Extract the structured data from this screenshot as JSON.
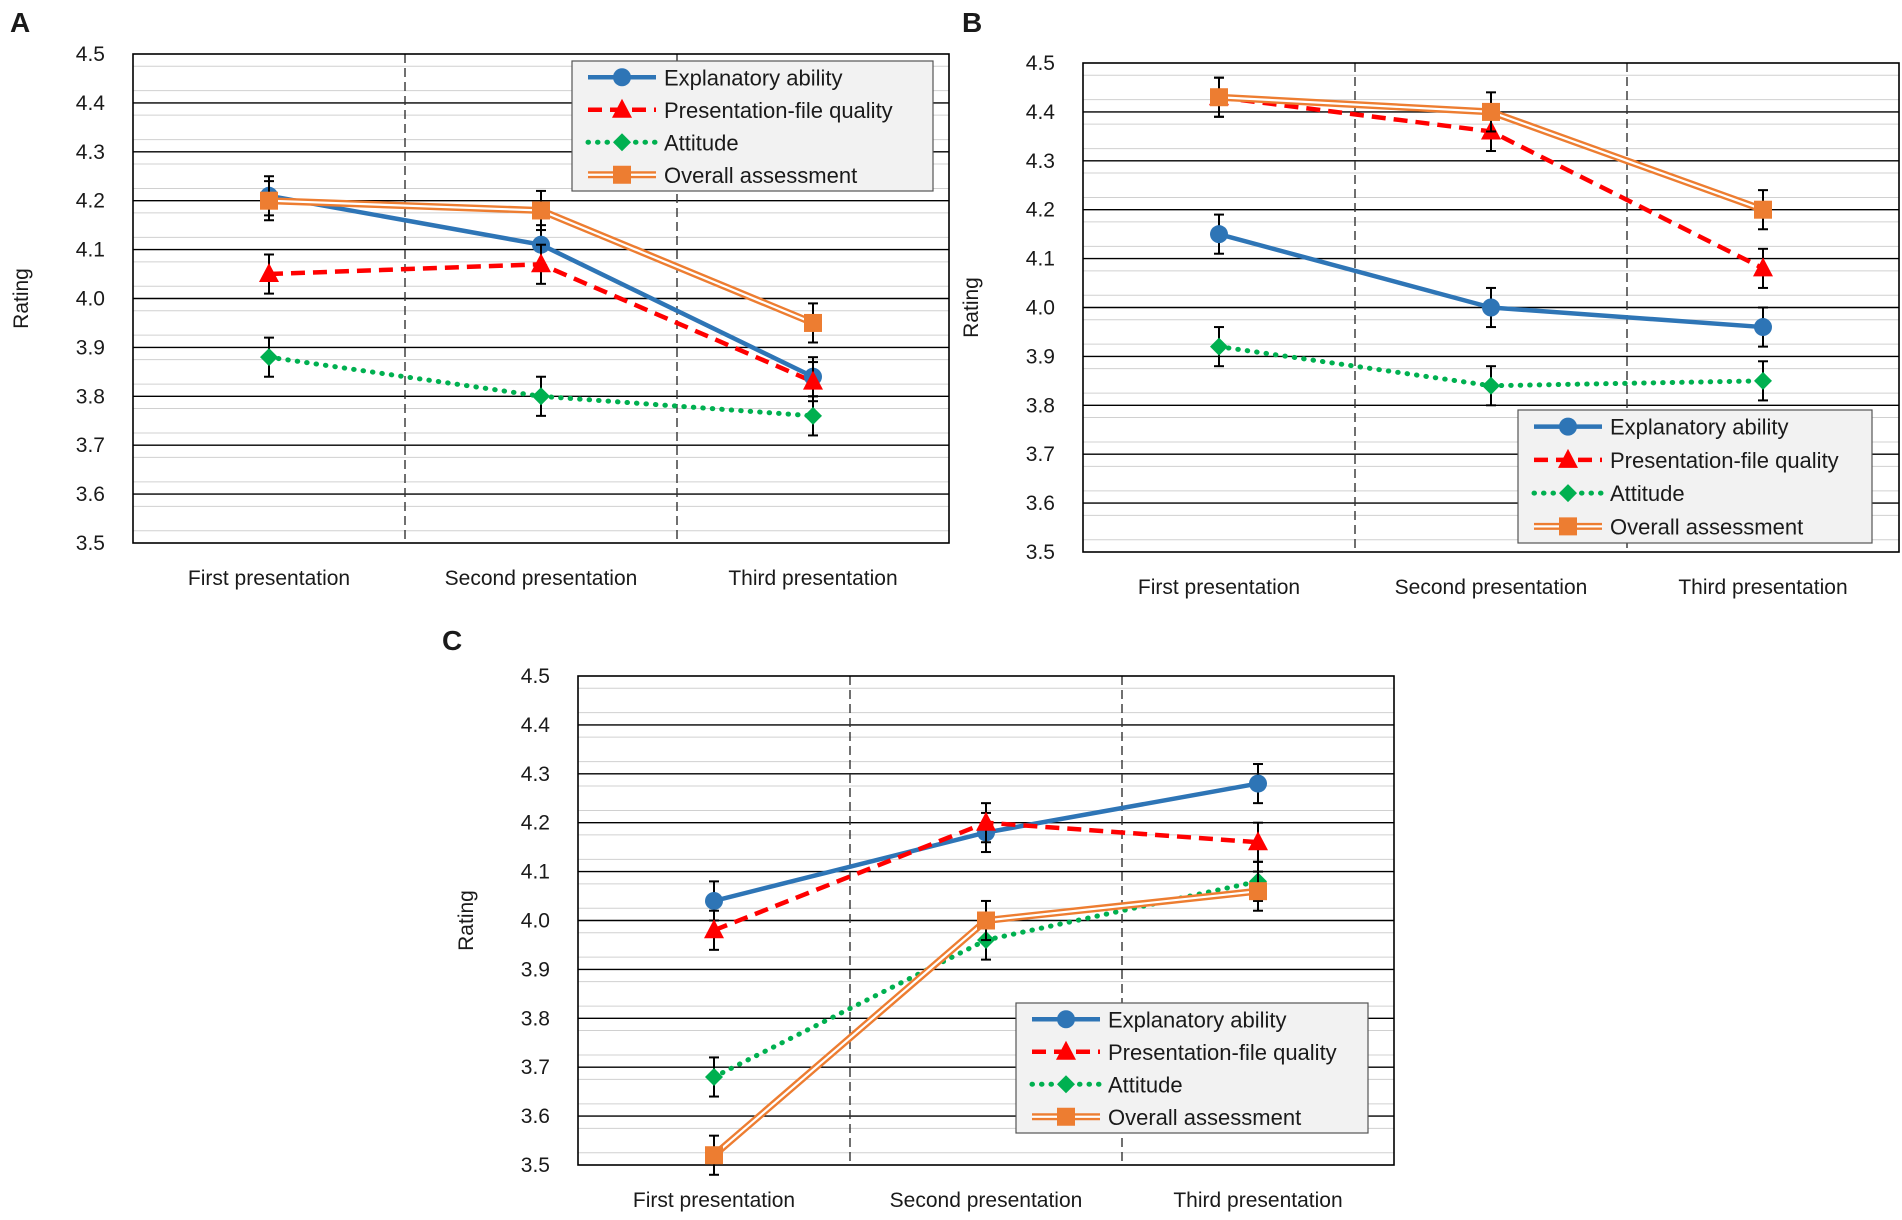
{
  "figure": {
    "legend_entries": {
      "explanatory": "Explanatory ability",
      "file_quality": "Presentation-file quality",
      "attitude": "Attitude",
      "overall": "Overall assessment"
    }
  },
  "chart_data": [
    {
      "panel": "A",
      "type": "line",
      "ylabel": "Rating",
      "xlabel": "",
      "ylim": [
        3.5,
        4.5
      ],
      "yticks": [
        "3.5",
        "3.6",
        "3.7",
        "3.8",
        "3.9",
        "4.0",
        "4.1",
        "4.2",
        "4.3",
        "4.4",
        "4.5"
      ],
      "grid": "major and minor horizontal",
      "legend_position": "top-right",
      "categories": [
        "First presentation",
        "Second presentation",
        "Third presentation"
      ],
      "series": [
        {
          "key": "explanatory",
          "name": "Explanatory ability",
          "values": [
            4.21,
            4.11,
            3.84
          ],
          "errors": [
            0.04,
            0.04,
            0.04
          ],
          "color": "#2e75b6",
          "style": "solid",
          "marker": "circle"
        },
        {
          "key": "file_quality",
          "name": "Presentation-file quality",
          "values": [
            4.05,
            4.07,
            3.83
          ],
          "errors": [
            0.04,
            0.04,
            0.04
          ],
          "color": "#ff0000",
          "style": "dashed",
          "marker": "triangle"
        },
        {
          "key": "attitude",
          "name": "Attitude",
          "values": [
            3.88,
            3.8,
            3.76
          ],
          "errors": [
            0.04,
            0.04,
            0.04
          ],
          "color": "#00b050",
          "style": "dotted",
          "marker": "diamond"
        },
        {
          "key": "overall",
          "name": "Overall assessment",
          "values": [
            4.2,
            4.18,
            3.95
          ],
          "errors": [
            0.04,
            0.04,
            0.04
          ],
          "color": "#ed7d31",
          "style": "double",
          "marker": "square"
        }
      ]
    },
    {
      "panel": "B",
      "type": "line",
      "ylabel": "Rating",
      "xlabel": "",
      "ylim": [
        3.5,
        4.5
      ],
      "yticks": [
        "3.5",
        "3.6",
        "3.7",
        "3.8",
        "3.9",
        "4.0",
        "4.1",
        "4.2",
        "4.3",
        "4.4",
        "4.5"
      ],
      "grid": "major and minor horizontal",
      "legend_position": "bottom-right",
      "categories": [
        "First presentation",
        "Second presentation",
        "Third presentation"
      ],
      "series": [
        {
          "key": "explanatory",
          "name": "Explanatory ability",
          "values": [
            4.15,
            4.0,
            3.96
          ],
          "errors": [
            0.04,
            0.04,
            0.04
          ],
          "color": "#2e75b6",
          "style": "solid",
          "marker": "circle"
        },
        {
          "key": "file_quality",
          "name": "Presentation-file quality",
          "values": [
            4.43,
            4.36,
            4.08
          ],
          "errors": [
            0.04,
            0.04,
            0.04
          ],
          "color": "#ff0000",
          "style": "dashed",
          "marker": "triangle"
        },
        {
          "key": "attitude",
          "name": "Attitude",
          "values": [
            3.92,
            3.84,
            3.85
          ],
          "errors": [
            0.04,
            0.04,
            0.04
          ],
          "color": "#00b050",
          "style": "dotted",
          "marker": "diamond"
        },
        {
          "key": "overall",
          "name": "Overall assessment",
          "values": [
            4.43,
            4.4,
            4.2
          ],
          "errors": [
            0.04,
            0.04,
            0.04
          ],
          "color": "#ed7d31",
          "style": "double",
          "marker": "square"
        }
      ]
    },
    {
      "panel": "C",
      "type": "line",
      "ylabel": "Rating",
      "xlabel": "",
      "ylim": [
        3.5,
        4.5
      ],
      "yticks": [
        "3.5",
        "3.6",
        "3.7",
        "3.8",
        "3.9",
        "4.0",
        "4.1",
        "4.2",
        "4.3",
        "4.4",
        "4.5"
      ],
      "grid": "major and minor horizontal",
      "legend_position": "bottom-right",
      "categories": [
        "First presentation",
        "Second presentation",
        "Third presentation"
      ],
      "series": [
        {
          "key": "explanatory",
          "name": "Explanatory ability",
          "values": [
            4.04,
            4.18,
            4.28
          ],
          "errors": [
            0.04,
            0.04,
            0.04
          ],
          "color": "#2e75b6",
          "style": "solid",
          "marker": "circle"
        },
        {
          "key": "file_quality",
          "name": "Presentation-file quality",
          "values": [
            3.98,
            4.2,
            4.16
          ],
          "errors": [
            0.04,
            0.04,
            0.04
          ],
          "color": "#ff0000",
          "style": "dashed",
          "marker": "triangle"
        },
        {
          "key": "attitude",
          "name": "Attitude",
          "values": [
            3.68,
            3.96,
            4.08
          ],
          "errors": [
            0.04,
            0.04,
            0.04
          ],
          "color": "#00b050",
          "style": "dotted",
          "marker": "diamond"
        },
        {
          "key": "overall",
          "name": "Overall assessment",
          "values": [
            3.52,
            4.0,
            4.06
          ],
          "errors": [
            0.04,
            0.04,
            0.04
          ],
          "color": "#ed7d31",
          "style": "double",
          "marker": "square"
        }
      ]
    }
  ]
}
